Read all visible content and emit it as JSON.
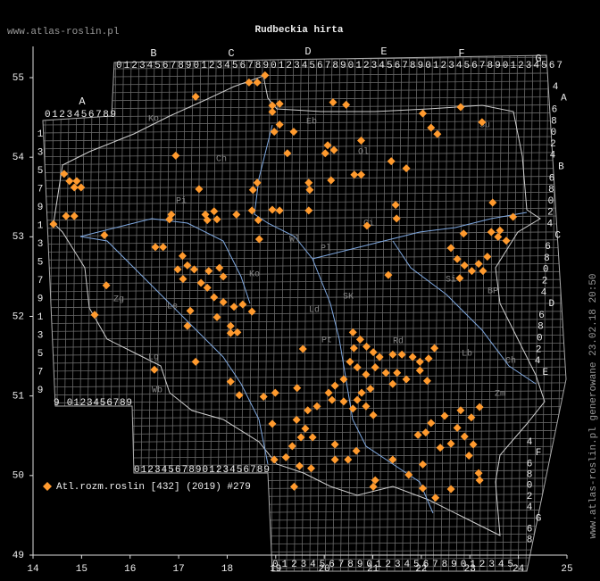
{
  "header": {
    "site": "www.atlas-roslin.pl",
    "title": "Rudbeckia hirta"
  },
  "side_note": "www.atlas-roslin.pl generowane 23.02.18 20:50",
  "legend": "Atl.rozm.roslin [432] (2019) #279",
  "axes": {
    "xlim": [
      14,
      25
    ],
    "xticks": [
      14,
      15,
      16,
      17,
      18,
      19,
      20,
      21,
      22,
      23,
      24,
      25
    ],
    "ylim": [
      49,
      55
    ],
    "yticks": [
      49,
      50,
      51,
      52,
      53,
      54,
      55
    ]
  },
  "grid_labels": {
    "top_letters": [
      "A",
      "B",
      "C",
      "D",
      "E",
      "F",
      "G"
    ],
    "top_row": "0123456789012345678901234567890123456789012345678901234567",
    "a_row": "0123456789",
    "a_column": [
      "1",
      "3",
      "5",
      "7",
      "9",
      "1",
      "3",
      "5",
      "7",
      "9",
      "1",
      "3",
      "5",
      "7",
      "9"
    ],
    "a_bottom": "9 0123456789",
    "b_bottom": "01234567890123456789",
    "bottom_row": "01234567890123456789012345",
    "right_column": [
      "4",
      "A",
      "6",
      "8",
      "0",
      "2",
      "4",
      "B",
      "6",
      "8",
      "0",
      "2",
      "4",
      "C",
      "6",
      "8",
      "0",
      "2",
      "4",
      "D",
      "6",
      "8",
      "0",
      "2",
      "4",
      "E"
    ],
    "lower_right_column": [
      "4",
      "F",
      "6",
      "8",
      "0",
      "2",
      "4",
      "G",
      "6",
      "8"
    ]
  },
  "regions": [
    "Ko",
    "Eb",
    "Ol",
    "Su",
    "Ch",
    "Pi",
    "Ci",
    "Wl",
    "Pl",
    "Ko",
    "Si",
    "BP",
    "Zg",
    "Le",
    "Ld",
    "SK",
    "Pt",
    "Rd",
    "Lb",
    "Ch",
    "Lg",
    "Wb",
    "Zm"
  ],
  "records": [
    [
      18.78,
      55.03
    ],
    [
      18.45,
      54.94
    ],
    [
      18.62,
      54.94
    ],
    [
      17.35,
      54.76
    ],
    [
      18.93,
      54.65
    ],
    [
      19.08,
      54.67
    ],
    [
      18.93,
      54.57
    ],
    [
      19.08,
      54.41
    ],
    [
      18.97,
      54.32
    ],
    [
      19.37,
      54.32
    ],
    [
      19.24,
      54.05
    ],
    [
      20.18,
      54.69
    ],
    [
      20.45,
      54.66
    ],
    [
      20.07,
      54.15
    ],
    [
      20.2,
      54.09
    ],
    [
      20.02,
      54.05
    ],
    [
      20.14,
      53.71
    ],
    [
      20.62,
      53.78
    ],
    [
      20.76,
      53.78
    ],
    [
      20.76,
      54.21
    ],
    [
      21.38,
      53.95
    ],
    [
      21.69,
      53.86
    ],
    [
      22.03,
      54.55
    ],
    [
      22.2,
      54.37
    ],
    [
      22.33,
      54.29
    ],
    [
      22.81,
      54.63
    ],
    [
      23.25,
      54.44
    ],
    [
      16.94,
      54.02
    ],
    [
      17.42,
      53.6
    ],
    [
      14.64,
      53.79
    ],
    [
      14.75,
      53.7
    ],
    [
      14.9,
      53.7
    ],
    [
      14.99,
      53.62
    ],
    [
      14.85,
      53.62
    ],
    [
      14.68,
      53.26
    ],
    [
      14.85,
      53.26
    ],
    [
      14.42,
      53.16
    ],
    [
      15.47,
      53.02
    ],
    [
      16.85,
      53.28
    ],
    [
      16.81,
      53.22
    ],
    [
      17.55,
      53.28
    ],
    [
      17.73,
      53.32
    ],
    [
      17.79,
      53.22
    ],
    [
      18.19,
      53.28
    ],
    [
      17.59,
      53.21
    ],
    [
      18.62,
      53.68
    ],
    [
      18.53,
      53.59
    ],
    [
      18.51,
      53.33
    ],
    [
      18.93,
      53.34
    ],
    [
      19.08,
      53.33
    ],
    [
      18.64,
      53.21
    ],
    [
      18.66,
      52.97
    ],
    [
      19.68,
      53.68
    ],
    [
      19.7,
      53.59
    ],
    [
      19.68,
      53.33
    ],
    [
      21.47,
      53.4
    ],
    [
      21.49,
      53.23
    ],
    [
      20.88,
      53.14
    ],
    [
      23.47,
      53.43
    ],
    [
      23.89,
      53.25
    ],
    [
      23.44,
      53.06
    ],
    [
      23.58,
      53.0
    ],
    [
      23.75,
      52.95
    ],
    [
      23.62,
      53.08
    ],
    [
      22.87,
      53.04
    ],
    [
      22.61,
      52.86
    ],
    [
      22.74,
      52.72
    ],
    [
      22.89,
      52.64
    ],
    [
      23.04,
      52.57
    ],
    [
      23.18,
      52.66
    ],
    [
      23.36,
      52.75
    ],
    [
      22.79,
      52.48
    ],
    [
      23.27,
      52.57
    ],
    [
      21.32,
      52.52
    ],
    [
      16.52,
      52.87
    ],
    [
      16.68,
      52.87
    ],
    [
      17.08,
      52.76
    ],
    [
      17.18,
      52.64
    ],
    [
      16.98,
      52.59
    ],
    [
      17.32,
      52.59
    ],
    [
      17.09,
      52.47
    ],
    [
      17.46,
      52.42
    ],
    [
      17.62,
      52.57
    ],
    [
      17.84,
      52.61
    ],
    [
      17.92,
      52.5
    ],
    [
      17.59,
      52.36
    ],
    [
      17.73,
      52.24
    ],
    [
      17.92,
      52.18
    ],
    [
      18.14,
      52.12
    ],
    [
      18.32,
      52.15
    ],
    [
      18.51,
      52.06
    ],
    [
      17.79,
      51.99
    ],
    [
      18.07,
      51.88
    ],
    [
      18.21,
      51.8
    ],
    [
      18.07,
      51.79
    ],
    [
      17.24,
      52.07
    ],
    [
      17.18,
      51.88
    ],
    [
      15.51,
      52.39
    ],
    [
      15.27,
      52.02
    ],
    [
      19.56,
      51.59
    ],
    [
      17.35,
      51.43
    ],
    [
      16.5,
      51.33
    ],
    [
      18.07,
      51.18
    ],
    [
      18.25,
      51.01
    ],
    [
      18.99,
      51.04
    ],
    [
      20.59,
      51.8
    ],
    [
      20.74,
      51.71
    ],
    [
      20.61,
      51.6
    ],
    [
      20.87,
      51.62
    ],
    [
      21.01,
      51.55
    ],
    [
      21.14,
      51.49
    ],
    [
      21.41,
      51.52
    ],
    [
      21.6,
      51.52
    ],
    [
      21.82,
      51.49
    ],
    [
      21.97,
      51.43
    ],
    [
      22.15,
      51.47
    ],
    [
      21.97,
      51.32
    ],
    [
      22.12,
      51.19
    ],
    [
      22.27,
      51.6
    ],
    [
      20.53,
      51.43
    ],
    [
      20.68,
      51.36
    ],
    [
      20.86,
      51.27
    ],
    [
      21.05,
      51.36
    ],
    [
      21.27,
      51.29
    ],
    [
      21.5,
      51.29
    ],
    [
      21.69,
      51.21
    ],
    [
      21.41,
      51.15
    ],
    [
      20.95,
      51.09
    ],
    [
      20.77,
      51.04
    ],
    [
      20.4,
      51.21
    ],
    [
      20.22,
      51.13
    ],
    [
      20.09,
      51.04
    ],
    [
      20.16,
      50.95
    ],
    [
      20.4,
      50.93
    ],
    [
      20.68,
      50.95
    ],
    [
      20.59,
      50.84
    ],
    [
      20.86,
      50.87
    ],
    [
      21.01,
      50.76
    ],
    [
      22.81,
      50.82
    ],
    [
      23.03,
      50.73
    ],
    [
      22.74,
      50.6
    ],
    [
      22.89,
      50.49
    ],
    [
      23.07,
      50.39
    ],
    [
      22.61,
      50.4
    ],
    [
      22.39,
      50.35
    ],
    [
      22.98,
      50.25
    ],
    [
      23.2,
      50.86
    ],
    [
      22.48,
      50.75
    ],
    [
      21.93,
      50.51
    ],
    [
      22.09,
      50.54
    ],
    [
      22.2,
      50.66
    ],
    [
      18.93,
      50.65
    ],
    [
      19.43,
      50.7
    ],
    [
      19.61,
      50.59
    ],
    [
      19.76,
      50.48
    ],
    [
      19.52,
      50.48
    ],
    [
      19.34,
      50.37
    ],
    [
      19.21,
      50.23
    ],
    [
      18.97,
      50.2
    ],
    [
      19.49,
      50.12
    ],
    [
      19.73,
      50.09
    ],
    [
      19.38,
      49.86
    ],
    [
      20.22,
      50.39
    ],
    [
      20.22,
      50.2
    ],
    [
      20.49,
      50.2
    ],
    [
      20.66,
      50.31
    ],
    [
      21.05,
      49.94
    ],
    [
      21.01,
      49.86
    ],
    [
      21.41,
      50.2
    ],
    [
      22.03,
      50.14
    ],
    [
      22.03,
      49.84
    ],
    [
      22.29,
      49.72
    ],
    [
      22.61,
      49.83
    ],
    [
      23.18,
      50.03
    ],
    [
      23.2,
      49.94
    ],
    [
      21.74,
      50.01
    ],
    [
      19.44,
      51.1
    ],
    [
      19.66,
      50.82
    ],
    [
      19.85,
      50.87
    ],
    [
      18.75,
      50.99
    ]
  ]
}
